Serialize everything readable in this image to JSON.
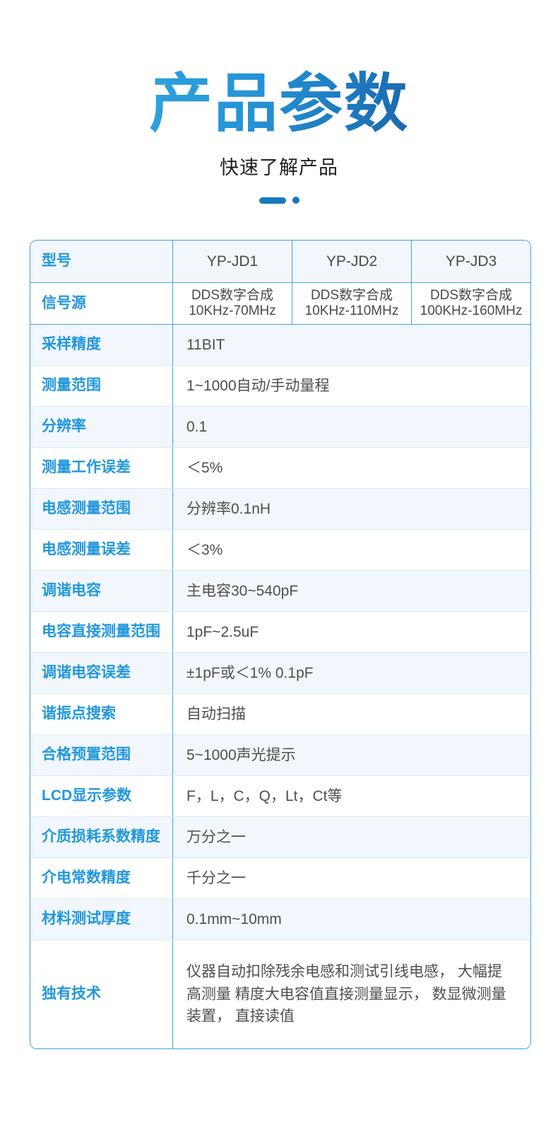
{
  "hero": {
    "title": "产品参数",
    "subtitle": "快速了解产品"
  },
  "colors": {
    "title_gradient_start": "#2fa2de",
    "title_gradient_end": "#1a68ae",
    "accent_blue": "#2297dd",
    "divider_blue": "#1878bc",
    "table_border_blue": "#43a1dc",
    "row_separator": "#d8e9f5",
    "row_tint": "#f1f7fc",
    "value_text": "#4f4f4f"
  },
  "table": {
    "model_row": {
      "label": "型号",
      "models": [
        "YP-JD1",
        "YP-JD2",
        "YP-JD3"
      ]
    },
    "signal_row": {
      "label": "信号源",
      "cells": [
        {
          "line1": "DDS数字合成",
          "line2": "10KHz-70MHz"
        },
        {
          "line1": "DDS数字合成",
          "line2": "10KHz-110MHz"
        },
        {
          "line1": "DDS数字合成",
          "line2": "100KHz-160MHz"
        }
      ]
    },
    "rows": [
      {
        "label": "采样精度",
        "value": "11BIT"
      },
      {
        "label": "测量范围",
        "value": "1~1000自动/手动量程"
      },
      {
        "label": "分辨率",
        "value": "0.1"
      },
      {
        "label": "测量工作误差",
        "value": "＜5%"
      },
      {
        "label": "电感测量范围",
        "value": "分辨率0.1nH"
      },
      {
        "label": "电感测量误差",
        "value": "＜3%"
      },
      {
        "label": "调谐电容",
        "value": "主电容30~540pF"
      },
      {
        "label": "电容直接测量范围",
        "value": "1pF~2.5uF"
      },
      {
        "label": "调谐电容误差",
        "value": "±1pF或＜1% 0.1pF"
      },
      {
        "label": "谐振点搜索",
        "value": "自动扫描"
      },
      {
        "label": "合格预置范围",
        "value": "5~1000声光提示"
      },
      {
        "label": "LCD显示参数",
        "value": "F，L，C，Q，Lt，Ct等"
      },
      {
        "label": "介质损耗系数精度",
        "value": "万分之一"
      },
      {
        "label": "介电常数精度",
        "value": "千分之一"
      },
      {
        "label": "材料测试厚度",
        "value": "0.1mm~10mm"
      },
      {
        "label": "独有技术",
        "value": "仪器自动扣除残余电感和测试引线电感， 大幅提高测量 精度大电容值直接测量显示， 数显微测量装置， 直接读值"
      }
    ]
  }
}
